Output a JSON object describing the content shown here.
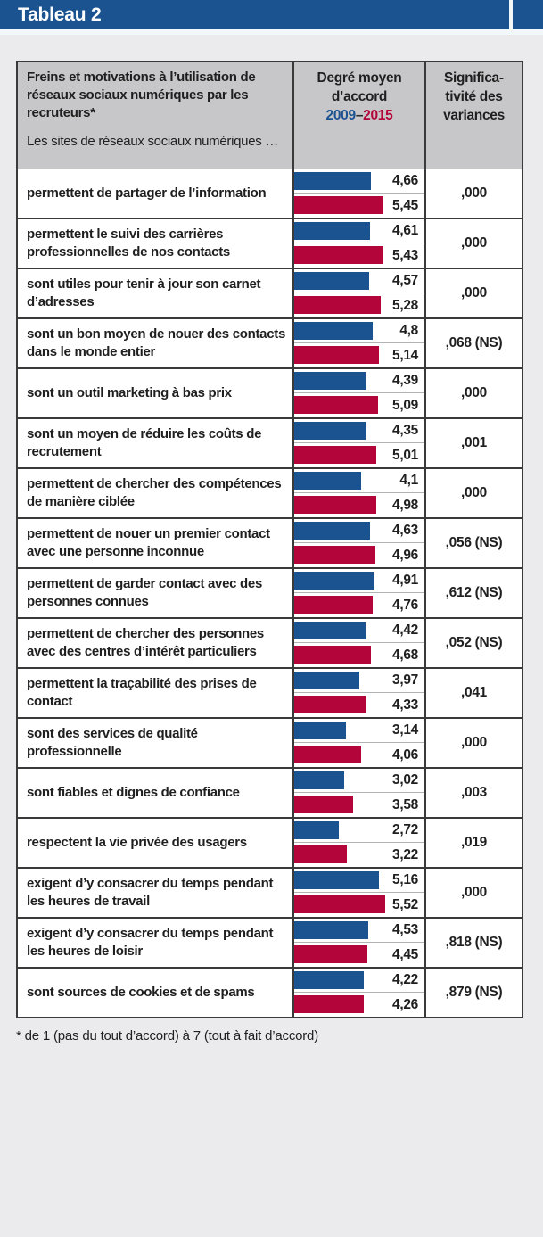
{
  "header": {
    "title": "Tableau 2"
  },
  "colors": {
    "band_blue": "#1a5390",
    "bar_2009_blue": "#1a5390",
    "bar_2015_red": "#b30539",
    "header_cell_gray": "#c7c7c9",
    "grid_border": "#3a3a3a",
    "page_background": "#ebebed"
  },
  "table_header": {
    "col1_main": "Freins et motivations à l’utilisation de réseaux sociaux numériques par les recruteurs*",
    "col1_sub": "Les sites de réseaux sociaux numé­riques …",
    "col2_line1": "Degré moyen",
    "col2_line2": "d’accord",
    "col2_year_start": "2009",
    "col2_year_sep": "–",
    "col2_year_end": "2015",
    "col3": "Significa­tivité des variances"
  },
  "rows": [
    {
      "label": "permettent de partager de l’information",
      "v2009": "4,66",
      "v2015": "5,45",
      "sig": ",000"
    },
    {
      "label": "permettent le suivi des carrières professionnelles de nos contacts",
      "v2009": "4,61",
      "v2015": "5,43",
      "sig": ",000"
    },
    {
      "label": "sont utiles pour tenir à jour son carnet d’adresses",
      "v2009": "4,57",
      "v2015": "5,28",
      "sig": ",000"
    },
    {
      "label": "sont un bon moyen de nouer des contacts dans le monde entier",
      "v2009": "4,8",
      "v2015": "5,14",
      "sig": ",068 (NS)"
    },
    {
      "label": "sont un outil marketing à bas prix",
      "v2009": "4,39",
      "v2015": "5,09",
      "sig": ",000"
    },
    {
      "label": "sont un moyen de réduire les coûts de recrutement",
      "v2009": "4,35",
      "v2015": "5,01",
      "sig": ",001"
    },
    {
      "label": "permettent de chercher des compétences de manière ciblée",
      "v2009": "4,1",
      "v2015": "4,98",
      "sig": ",000"
    },
    {
      "label": "permettent de nouer un premier contact avec une personne inconnue",
      "v2009": "4,63",
      "v2015": "4,96",
      "sig": ",056 (NS)"
    },
    {
      "label": "permettent de garder contact avec des personnes connues",
      "v2009": "4,91",
      "v2015": "4,76",
      "sig": ",612 (NS)"
    },
    {
      "label": "permettent de chercher des personnes avec des centres d’intérêt particuliers",
      "v2009": "4,42",
      "v2015": "4,68",
      "sig": ",052 (NS)"
    },
    {
      "label": "permettent la traçabilité des prises de contact",
      "v2009": "3,97",
      "v2015": "4,33",
      "sig": ",041"
    },
    {
      "label": "sont des services de qualité professionnelle",
      "v2009": "3,14",
      "v2015": "4,06",
      "sig": ",000"
    },
    {
      "label": "sont fiables et dignes de confiance",
      "v2009": "3,02",
      "v2015": "3,58",
      "sig": ",003"
    },
    {
      "label": "respectent la vie privée des usagers",
      "v2009": "2,72",
      "v2015": "3,22",
      "sig": ",019"
    },
    {
      "label": "exigent d’y consacrer du temps pendant les heures de travail",
      "v2009": "5,16",
      "v2015": "5,52",
      "sig": ",000"
    },
    {
      "label": "exigent d’y consacrer du temps pendant les heures de loisir",
      "v2009": "4,53",
      "v2015": "4,45",
      "sig": ",818 (NS)"
    },
    {
      "label": "sont sources de cookies et de spams",
      "v2009": "4,22",
      "v2015": "4,26",
      "sig": ",879 (NS)"
    }
  ],
  "footnote": "* de 1 (pas du tout d’accord) à 7 (tout à fait d’accord)",
  "chart_data": {
    "type": "bar",
    "orientation": "horizontal",
    "title": "Tableau 2 — Freins et motivations à l’utilisation de réseaux sociaux numériques par les recruteurs",
    "categories": [
      "permettent de partager de l’information",
      "permettent le suivi des carrières professionnelles de nos contacts",
      "sont utiles pour tenir à jour son carnet d’adresses",
      "sont un bon moyen de nouer des contacts dans le monde entier",
      "sont un outil marketing à bas prix",
      "sont un moyen de réduire les coûts de recrutement",
      "permettent de chercher des compétences de manière ciblée",
      "permettent de nouer un premier contact avec une personne inconnue",
      "permettent de garder contact avec des personnes connues",
      "permettent de chercher des personnes avec des centres d’intérêt particuliers",
      "permettent la traçabilité des prises de contact",
      "sont des services de qualité professionnelle",
      "sont fiables et dignes de confiance",
      "respectent la vie privée des usagers",
      "exigent d’y consacrer du temps pendant les heures de travail",
      "exigent d’y consacrer du temps pendant les heures de loisir",
      "sont sources de cookies et de spams"
    ],
    "series": [
      {
        "name": "2009",
        "color": "#1a5390",
        "values": [
          4.66,
          4.61,
          4.57,
          4.8,
          4.39,
          4.35,
          4.1,
          4.63,
          4.91,
          4.42,
          3.97,
          3.14,
          3.02,
          2.72,
          5.16,
          4.53,
          4.22
        ]
      },
      {
        "name": "2015",
        "color": "#b30539",
        "values": [
          5.45,
          5.43,
          5.28,
          5.14,
          5.09,
          5.01,
          4.98,
          4.96,
          4.76,
          4.68,
          4.33,
          4.06,
          3.58,
          3.22,
          5.52,
          4.45,
          4.26
        ]
      }
    ],
    "significance": [
      ",000",
      ",000",
      ",000",
      ",068 (NS)",
      ",000",
      ",001",
      ",000",
      ",056 (NS)",
      ",612 (NS)",
      ",052 (NS)",
      ",041",
      ",000",
      ",003",
      ",019",
      ",000",
      ",818 (NS)",
      ",879 (NS)"
    ],
    "value_scale_note": "de 1 (pas du tout d’accord) à 7 (tout à fait d’accord)",
    "xlim": [
      0,
      7
    ],
    "legend_position": "in-header (2009–2015)",
    "grid": false
  }
}
